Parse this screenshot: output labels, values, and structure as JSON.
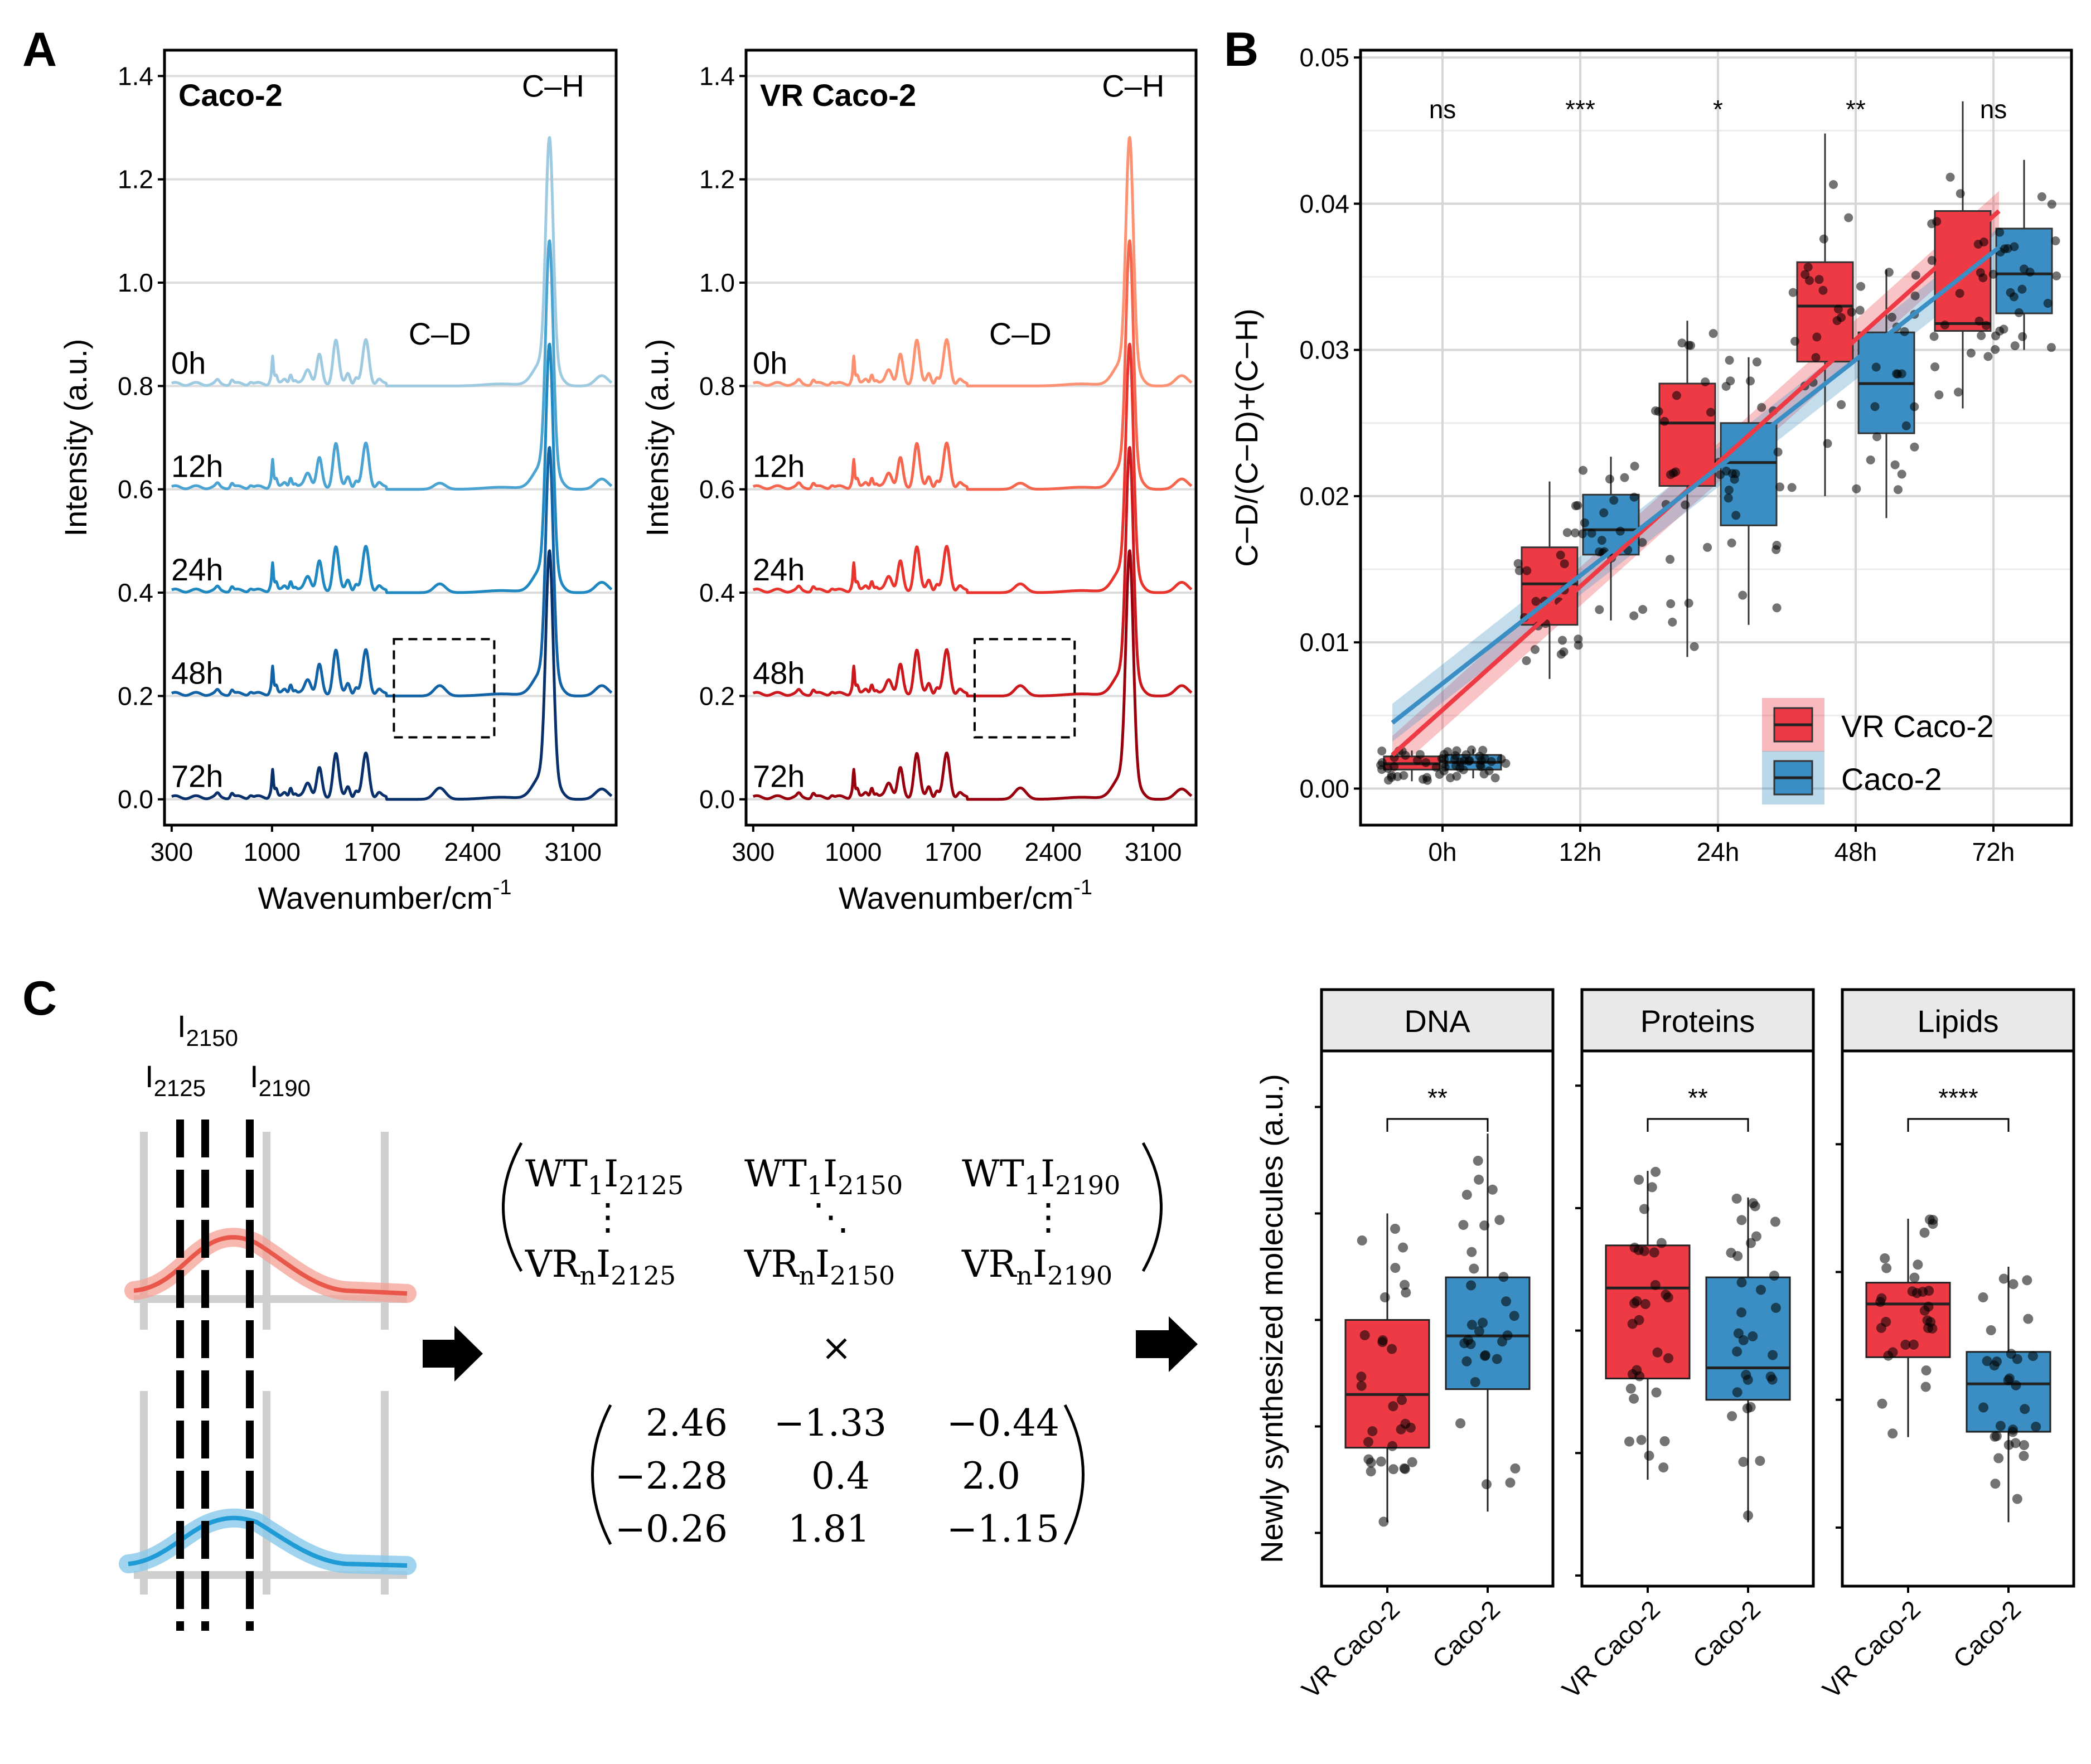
{
  "panels": {
    "a": "A",
    "b": "B",
    "c": "C"
  },
  "chart_data": [
    {
      "id": "A1",
      "type": "line",
      "title": "Caco-2",
      "title_color": "#1a82bf",
      "xlabel": "Wavenumber/cm",
      "xlabel_sup": "-1",
      "ylabel": "Intensity (a.u.)",
      "xlim": [
        250,
        3400
      ],
      "ylim": [
        -0.05,
        1.45
      ],
      "xticks": [
        300,
        1000,
        1700,
        2400,
        3100
      ],
      "yticks": [
        0.0,
        0.2,
        0.4,
        0.6,
        0.8,
        1.0,
        1.2,
        1.4
      ],
      "series": [
        {
          "name": "0h",
          "offset": 0.8,
          "ch_peak": 1.29,
          "cd_peak": 0.0,
          "color": "#9ecae1"
        },
        {
          "name": "12h",
          "offset": 0.6,
          "ch_peak": 1.09,
          "cd_peak": 0.012,
          "color": "#4ba3d1"
        },
        {
          "name": "24h",
          "offset": 0.4,
          "ch_peak": 0.89,
          "cd_peak": 0.017,
          "color": "#1f88c0"
        },
        {
          "name": "48h",
          "offset": 0.2,
          "ch_peak": 0.69,
          "cd_peak": 0.02,
          "color": "#1262a6"
        },
        {
          "name": "72h",
          "offset": 0.0,
          "ch_peak": 0.49,
          "cd_peak": 0.022,
          "color": "#08306b"
        }
      ],
      "annotations": [
        {
          "text": "C–H",
          "x": 2960,
          "y": 1.36
        },
        {
          "text": "C–D",
          "x": 2170,
          "y": 0.88
        }
      ],
      "cd_box": {
        "x": [
          1850,
          2550
        ],
        "y": [
          0.12,
          0.31
        ]
      }
    },
    {
      "id": "A2",
      "type": "line",
      "title": "VR Caco-2",
      "title_color": "#ee2a25",
      "xlabel": "Wavenumber/cm",
      "xlabel_sup": "-1",
      "ylabel": "Intensity (a.u.)",
      "xlim": [
        250,
        3400
      ],
      "ylim": [
        -0.05,
        1.45
      ],
      "xticks": [
        300,
        1000,
        1700,
        2400,
        3100
      ],
      "yticks": [
        0.0,
        0.2,
        0.4,
        0.6,
        0.8,
        1.0,
        1.2,
        1.4
      ],
      "series": [
        {
          "name": "0h",
          "offset": 0.8,
          "ch_peak": 1.29,
          "cd_peak": 0.0,
          "color": "#fc9272"
        },
        {
          "name": "12h",
          "offset": 0.6,
          "ch_peak": 1.09,
          "cd_peak": 0.012,
          "color": "#f6654d"
        },
        {
          "name": "24h",
          "offset": 0.4,
          "ch_peak": 0.89,
          "cd_peak": 0.017,
          "color": "#e8342c"
        },
        {
          "name": "48h",
          "offset": 0.2,
          "ch_peak": 0.69,
          "cd_peak": 0.02,
          "color": "#cb181d"
        },
        {
          "name": "72h",
          "offset": 0.0,
          "ch_peak": 0.49,
          "cd_peak": 0.022,
          "color": "#99000d"
        }
      ],
      "annotations": [
        {
          "text": "C–H",
          "x": 2960,
          "y": 1.36
        },
        {
          "text": "C–D",
          "x": 2170,
          "y": 0.88
        }
      ],
      "cd_box": {
        "x": [
          1850,
          2550
        ],
        "y": [
          0.12,
          0.31
        ]
      }
    },
    {
      "id": "B",
      "type": "box",
      "ylabel": "C−D/(C−D)+(C−H)",
      "ylim": [
        -0.0025,
        0.0505
      ],
      "yticks": [
        0.0,
        0.01,
        0.02,
        0.03,
        0.04,
        0.05
      ],
      "ytick_labels": [
        "0.00",
        "0.01",
        "0.02",
        "0.03",
        "0.04",
        "0.05"
      ],
      "categories": [
        "0h",
        "12h",
        "24h",
        "48h",
        "72h"
      ],
      "significance": [
        "ns",
        "***",
        "*",
        "**",
        "ns"
      ],
      "series": [
        {
          "name": "VR Caco-2",
          "color": "#ee3a45",
          "stats": [
            [
              0.0005,
              0.0013,
              0.0017,
              0.0022,
              0.0026
            ],
            [
              0.0075,
              0.0112,
              0.014,
              0.0165,
              0.021
            ],
            [
              0.009,
              0.0207,
              0.025,
              0.0277,
              0.032
            ],
            [
              0.02,
              0.0292,
              0.033,
              0.036,
              0.0448
            ],
            [
              0.026,
              0.0313,
              0.0318,
              0.0395,
              0.047
            ]
          ],
          "fit": [
            0.0023,
            0.0395
          ]
        },
        {
          "name": "Caco-2",
          "color": "#3a8ec3",
          "stats": [
            [
              0.0007,
              0.0013,
              0.0018,
              0.0023,
              0.0027
            ],
            [
              0.0115,
              0.016,
              0.0177,
              0.0201,
              0.0227
            ],
            [
              0.0112,
              0.018,
              0.0223,
              0.025,
              0.0295
            ],
            [
              0.0185,
              0.0243,
              0.0277,
              0.0312,
              0.0355
            ],
            [
              0.03,
              0.0325,
              0.0352,
              0.0383,
              0.043
            ]
          ],
          "fit": [
            0.0045,
            0.037
          ]
        }
      ],
      "legend": [
        "VR Caco-2",
        "Caco-2"
      ]
    },
    {
      "id": "C",
      "type": "box",
      "ylabel": "Newly synthesized molecules (a.u.)",
      "ylim": [
        0,
        100
      ],
      "facets": [
        "DNA",
        "Proteins",
        "Lipids"
      ],
      "categories": [
        "VR Caco-2",
        "Caco-2"
      ],
      "significance": [
        "**",
        "**",
        "****"
      ],
      "colors": [
        "#ee3a45",
        "#3a8ec3"
      ],
      "stats": [
        [
          [
            12,
            26,
            36,
            50,
            70
          ],
          [
            14,
            37,
            47,
            58,
            85
          ]
        ],
        [
          [
            20,
            39,
            56,
            64,
            78
          ],
          [
            12,
            35,
            41,
            58,
            73
          ]
        ],
        [
          [
            28,
            43,
            53,
            57,
            69
          ],
          [
            12,
            29,
            38,
            44,
            60
          ]
        ]
      ]
    }
  ],
  "peak_labels": {
    "i2150": {
      "main": "I",
      "sub": "2150"
    },
    "i2125": {
      "main": "I",
      "sub": "2125"
    },
    "i2190": {
      "main": "I",
      "sub": "2190"
    }
  },
  "matrix_a": {
    "r1c1": "WT",
    "r1c1_sub": "1",
    "r1c1_i": "I",
    "r1c1_isub": "2125",
    "r1c2": "WT",
    "r1c2_sub": "1",
    "r1c2_i": "I",
    "r1c2_isub": "2150",
    "r1c3": "WT",
    "r1c3_sub": "1",
    "r1c3_i": "I",
    "r1c3_isub": "2190",
    "vdots": "⋮",
    "ddots": "⋱",
    "r3c1": "VR",
    "r3c1_sub": "n",
    "r3c1_i": "I",
    "r3c1_isub": "2125",
    "r3c2": "VR",
    "r3c2_sub": "n",
    "r3c2_i": "I",
    "r3c2_isub": "2150",
    "r3c3": "VR",
    "r3c3_sub": "n",
    "r3c3_i": "I",
    "r3c3_isub": "2190"
  },
  "times": "×",
  "matrix_b": [
    [
      "2.46",
      "−1.33",
      "−0.44"
    ],
    [
      "−2.28",
      "0.4",
      "2.0"
    ],
    [
      "−0.26",
      "1.81",
      "−1.15"
    ]
  ]
}
